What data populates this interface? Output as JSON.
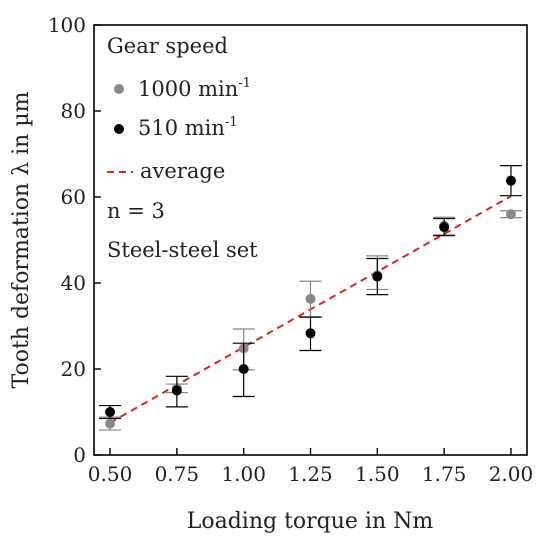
{
  "chart_data": {
    "type": "scatter",
    "title": "",
    "xlabel": "Loading torque in Nm",
    "ylabel": "Tooth deformation λ in µm",
    "xlim": [
      0.44,
      2.06
    ],
    "ylim": [
      0,
      100
    ],
    "xticks": [
      "0.50",
      "0.75",
      "1.00",
      "1.25",
      "1.50",
      "1.75",
      "2.00"
    ],
    "yticks": [
      "0",
      "20",
      "40",
      "60",
      "80",
      "100"
    ],
    "grid": false,
    "legend": {
      "placement": "top-left",
      "title": "Gear speed",
      "notes": [
        "n = 3",
        "Steel-steel set"
      ]
    },
    "series": [
      {
        "name": "1000 min",
        "name_sup": "-1",
        "color": "#888888",
        "x": [
          0.5,
          0.75,
          1.0,
          1.25,
          1.5,
          1.75,
          2.0
        ],
        "y": [
          7.3,
          15.5,
          24.8,
          36.3,
          41.8,
          53.3,
          56.0
        ],
        "err_low": [
          1.5,
          1.0,
          5.0,
          4.3,
          3.3,
          2.1,
          0.8
        ],
        "err_high": [
          1.5,
          1.0,
          4.5,
          4.1,
          4.5,
          2.0,
          0.8
        ]
      },
      {
        "name": "510 min",
        "name_sup": "-1",
        "color": "#000000",
        "x": [
          0.5,
          0.75,
          1.0,
          1.25,
          1.5,
          1.75,
          2.0
        ],
        "y": [
          10.0,
          15.0,
          20.0,
          28.3,
          41.5,
          53.0,
          63.8
        ],
        "err_low": [
          1.5,
          3.8,
          6.4,
          4.0,
          4.2,
          2.0,
          3.5
        ],
        "err_high": [
          1.5,
          3.3,
          6.0,
          3.8,
          4.2,
          2.0,
          3.5
        ]
      },
      {
        "name": "average",
        "color": "#dd2222",
        "line_style": "dashed",
        "x": [
          0.5,
          2.0
        ],
        "y": [
          7.5,
          60.2
        ]
      }
    ]
  }
}
